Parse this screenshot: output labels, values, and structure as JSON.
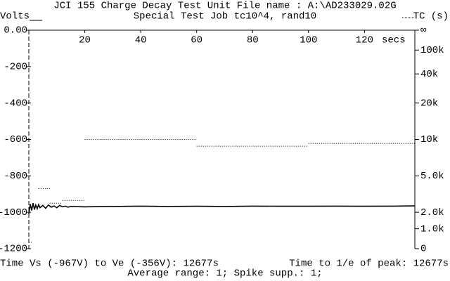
{
  "chart_data": {
    "type": "line",
    "title": "JCI 155 Charge Decay Test Unit   File name : A:\\AD233029.02G",
    "subtitle": "Special Test Job tc10^4, rand10",
    "y_label": "Volts",
    "y2_label": "TC (s)",
    "x_label": "secs",
    "footer_left": "Time Vs (-967V) to Ve (-356V): 12677s",
    "footer_right": "Time to 1/e of peak: 12677s",
    "footer_center": "Average range: 1; Spike supp.: 1;",
    "xlim": [
      0,
      138
    ],
    "xticks": [
      20,
      40,
      60,
      80,
      100,
      120
    ],
    "ylim": [
      -1200,
      0
    ],
    "yticks": [
      {
        "value": 0,
        "label": "0.00"
      },
      -200,
      -400,
      -600,
      -800,
      -1000,
      -1200
    ],
    "y2scale": {
      "type": "reciprocal",
      "half": 10000
    },
    "y2ticks": [
      {
        "value": null,
        "label": "∞"
      },
      {
        "value": 100000,
        "label": "100k"
      },
      {
        "value": 40000,
        "label": "40k"
      },
      {
        "value": 20000,
        "label": "20k"
      },
      {
        "value": 10000,
        "label": "10k"
      },
      {
        "value": 5000,
        "label": "5.0k"
      },
      {
        "value": 2000,
        "label": "2.0k"
      },
      {
        "value": 1000,
        "label": "1.0k"
      },
      0
    ],
    "series": [
      {
        "color": "#000000",
        "style": "solid",
        "x": [
          0,
          0.5,
          1,
          1.5,
          2,
          2.5,
          3,
          3.5,
          4,
          5,
          6,
          7,
          8,
          9,
          10,
          11,
          12,
          13,
          14,
          15,
          20,
          30,
          40,
          50,
          60,
          70,
          80,
          90,
          100,
          110,
          120,
          130,
          138
        ],
        "values": [
          -1010,
          -955,
          -990,
          -950,
          -985,
          -960,
          -980,
          -958,
          -975,
          -962,
          -978,
          -960,
          -972,
          -965,
          -975,
          -962,
          -970,
          -966,
          -972,
          -968,
          -970,
          -968,
          -966,
          -968,
          -967,
          -968,
          -966,
          -967,
          -967,
          -966,
          -967,
          -966,
          -965
        ]
      },
      {
        "color": "#000000",
        "style": "dotted",
        "x": [
          0,
          1,
          1,
          3.5,
          7.5,
          7.5,
          7.5,
          12,
          12,
          12,
          20,
          20,
          20,
          60,
          60,
          60,
          100,
          100,
          100,
          138
        ],
        "values": [
          -1165,
          -1165,
          null,
          -870,
          -870,
          null,
          -950,
          -950,
          null,
          -935,
          -935,
          null,
          -600,
          -600,
          null,
          -637,
          -637,
          null,
          -622,
          -622
        ]
      }
    ]
  }
}
